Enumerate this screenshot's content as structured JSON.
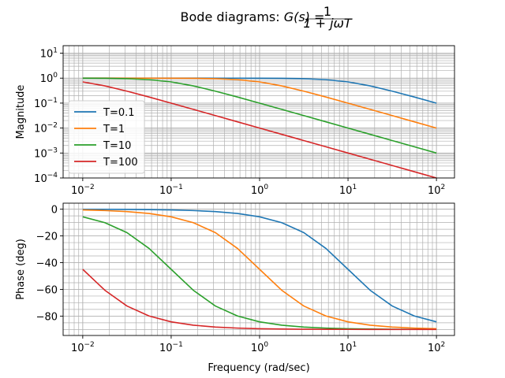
{
  "figure": {
    "title_prefix": "Bode diagrams: ",
    "title_func": "G(s) = ",
    "title_num": "1",
    "title_den": "1 + jωT"
  },
  "chart_data": [
    {
      "type": "line",
      "panel": "magnitude",
      "xscale": "log",
      "yscale": "log",
      "xlim": [
        0.006,
        160
      ],
      "ylim": [
        0.0001,
        20
      ],
      "xlabel": "",
      "ylabel": "Magnitude",
      "grid": true,
      "grid_minor": true,
      "legend": "lower-left",
      "xticks": [
        0.01,
        0.1,
        1,
        10,
        100
      ],
      "xtick_labels": [
        {
          "base": "10",
          "exp": "−2"
        },
        {
          "base": "10",
          "exp": "−1"
        },
        {
          "base": "10",
          "exp": "0"
        },
        {
          "base": "10",
          "exp": "1"
        },
        {
          "base": "10",
          "exp": "2"
        }
      ],
      "yticks": [
        0.0001,
        0.001,
        0.01,
        0.1,
        1,
        10
      ],
      "ytick_labels": [
        {
          "base": "10",
          "exp": "−4"
        },
        {
          "base": "10",
          "exp": "−3"
        },
        {
          "base": "10",
          "exp": "−2"
        },
        {
          "base": "10",
          "exp": "−1"
        },
        {
          "base": "10",
          "exp": "0"
        },
        {
          "base": "10",
          "exp": "1"
        }
      ],
      "x": [
        0.01,
        0.0178,
        0.0316,
        0.0562,
        0.1,
        0.178,
        0.316,
        0.562,
        1,
        1.78,
        3.16,
        5.62,
        10,
        17.8,
        31.6,
        56.2,
        100
      ],
      "series": [
        {
          "name": "T=0.1",
          "color": "#1f77b4",
          "values": [
            1.0,
            1.0,
            1.0,
            1.0,
            1.0,
            1.0,
            0.9995,
            0.9984,
            0.995,
            0.9845,
            0.9536,
            0.8718,
            0.7071,
            0.4897,
            0.3017,
            0.1752,
            0.0995
          ]
        },
        {
          "name": "T=1",
          "color": "#ff7f0e",
          "values": [
            1.0,
            0.9998,
            0.9995,
            0.9984,
            0.995,
            0.9845,
            0.9536,
            0.8718,
            0.7071,
            0.4897,
            0.3017,
            0.1752,
            0.0995,
            0.0561,
            0.0316,
            0.0178,
            0.01
          ]
        },
        {
          "name": "T=10",
          "color": "#2ca02c",
          "values": [
            0.995,
            0.9845,
            0.9536,
            0.8718,
            0.7071,
            0.4897,
            0.3017,
            0.1752,
            0.0995,
            0.0561,
            0.0316,
            0.0178,
            0.01,
            0.00562,
            0.00316,
            0.00178,
            0.001
          ]
        },
        {
          "name": "T=100",
          "color": "#d62728",
          "values": [
            0.7071,
            0.4897,
            0.3017,
            0.1752,
            0.0995,
            0.0561,
            0.0316,
            0.0178,
            0.01,
            0.00562,
            0.00316,
            0.00178,
            0.001,
            0.000562,
            0.000316,
            0.000178,
            0.0001
          ]
        }
      ]
    },
    {
      "type": "line",
      "panel": "phase",
      "xscale": "log",
      "yscale": "linear",
      "xlim": [
        0.006,
        160
      ],
      "ylim": [
        -94.5,
        4.5
      ],
      "xlabel": "Frequency (rad/sec)",
      "ylabel": "Phase (deg)",
      "grid": true,
      "grid_minor": true,
      "xticks": [
        0.01,
        0.1,
        1,
        10,
        100
      ],
      "xtick_labels": [
        {
          "base": "10",
          "exp": "−2"
        },
        {
          "base": "10",
          "exp": "−1"
        },
        {
          "base": "10",
          "exp": "0"
        },
        {
          "base": "10",
          "exp": "1"
        },
        {
          "base": "10",
          "exp": "2"
        }
      ],
      "yticks": [
        0,
        -20,
        -40,
        -60,
        -80
      ],
      "ytick_labels": [
        "0",
        "−20",
        "−40",
        "−60",
        "−80"
      ],
      "x": [
        0.01,
        0.0178,
        0.0316,
        0.0562,
        0.1,
        0.178,
        0.316,
        0.562,
        1,
        1.78,
        3.16,
        5.62,
        10,
        17.8,
        31.6,
        56.2,
        100
      ],
      "series": [
        {
          "name": "T=0.1",
          "color": "#1f77b4",
          "values": [
            -0.06,
            -0.1,
            -0.18,
            -0.32,
            -0.57,
            -1.02,
            -1.81,
            -3.22,
            -5.71,
            -10.09,
            -17.53,
            -29.35,
            -45.0,
            -60.67,
            -72.44,
            -79.91,
            -84.29
          ]
        },
        {
          "name": "T=1",
          "color": "#ff7f0e",
          "values": [
            -0.57,
            -1.02,
            -1.81,
            -3.22,
            -5.71,
            -10.09,
            -17.53,
            -29.35,
            -45.0,
            -60.67,
            -72.44,
            -79.91,
            -84.29,
            -86.78,
            -88.19,
            -88.98,
            -89.43
          ]
        },
        {
          "name": "T=10",
          "color": "#2ca02c",
          "values": [
            -5.71,
            -10.09,
            -17.53,
            -29.35,
            -45.0,
            -60.67,
            -72.44,
            -79.91,
            -84.29,
            -86.78,
            -88.19,
            -88.98,
            -89.43,
            -89.68,
            -89.82,
            -89.9,
            -89.94
          ]
        },
        {
          "name": "T=100",
          "color": "#d62728",
          "values": [
            -45.0,
            -60.67,
            -72.44,
            -79.91,
            -84.29,
            -86.78,
            -88.19,
            -88.98,
            -89.43,
            -89.68,
            -89.82,
            -89.9,
            -89.94,
            -89.97,
            -89.98,
            -89.99,
            -89.99
          ]
        }
      ]
    }
  ]
}
